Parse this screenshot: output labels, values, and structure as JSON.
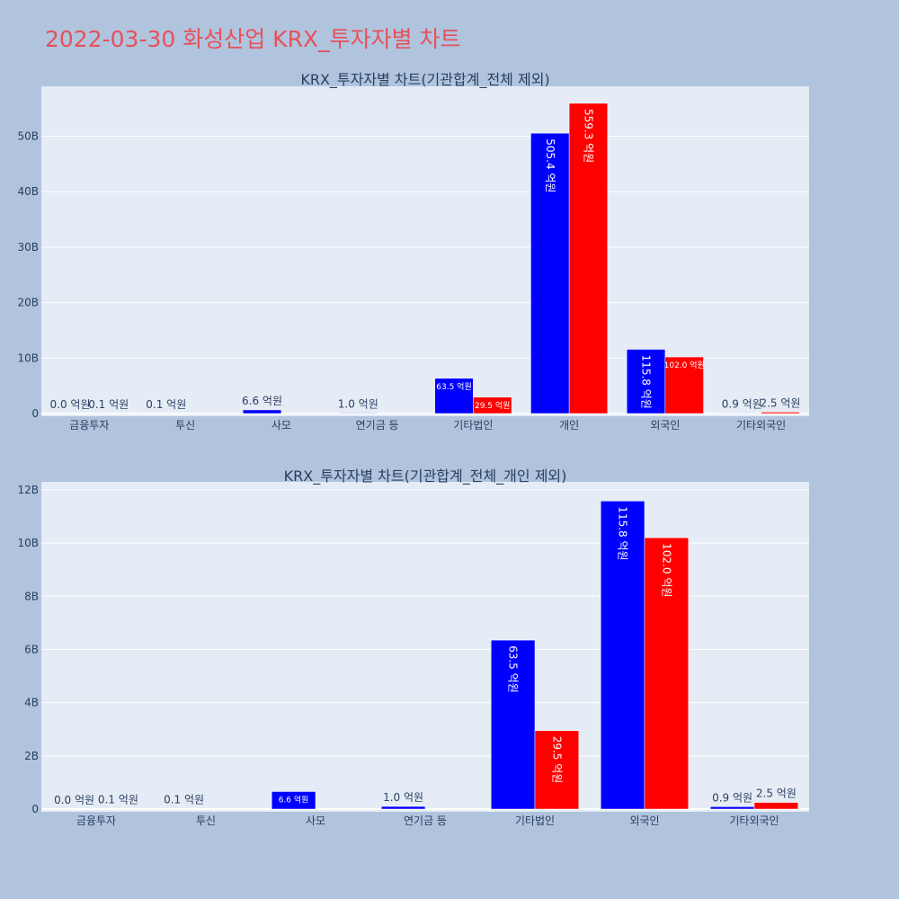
{
  "page_title": "2022-03-30 화성산업 KRX_투자자별 차트",
  "colors": {
    "background": "#b0c4de",
    "plot_bg": "#e5ecf6",
    "title": "#e8505b",
    "buy": "#0000ff",
    "sell": "#ff0000"
  },
  "chart_data": [
    {
      "type": "bar",
      "title": "KRX_투자자별 차트(기관합계_전체 제외)",
      "categories": [
        "금융투자",
        "투신",
        "사모",
        "연기금 등",
        "기타법인",
        "개인",
        "외국인",
        "기타외국인"
      ],
      "series": [
        {
          "color": "#0000ff",
          "values": [
            0.0,
            0.01,
            0.66,
            0.1,
            6.35,
            50.54,
            11.58,
            0.09
          ],
          "labels": [
            "0.0 억원",
            "0.1 억원",
            "6.6 억원",
            "1.0 억원",
            "63.5 억원",
            "505.4 억원",
            "115.8 억원",
            "0.9 억원"
          ]
        },
        {
          "color": "#ff0000",
          "values": [
            0.01,
            0.0,
            0.0,
            0.0,
            2.95,
            55.93,
            10.2,
            0.25
          ],
          "labels": [
            "0.1 억원",
            "",
            "",
            "",
            "29.5 억원",
            "559.3 억원",
            "102.0 억원",
            "2.5 억원"
          ]
        }
      ],
      "yticks": [
        0,
        10,
        20,
        30,
        40,
        50
      ],
      "ytick_labels": [
        "0",
        "10B",
        "20B",
        "30B",
        "40B",
        "50B"
      ],
      "ylim": [
        0,
        59
      ],
      "grid": true
    },
    {
      "type": "bar",
      "title": "KRX_투자자별 차트(기관합계_전체_개인 제외)",
      "categories": [
        "금융투자",
        "투신",
        "사모",
        "연기금 등",
        "기타법인",
        "외국인",
        "기타외국인"
      ],
      "series": [
        {
          "color": "#0000ff",
          "values": [
            0.0,
            0.01,
            0.66,
            0.1,
            6.35,
            11.58,
            0.09
          ],
          "labels": [
            "0.0 억원",
            "0.1 억원",
            "6.6 억원",
            "1.0 억원",
            "63.5 억원",
            "115.8 억원",
            "0.9 억원"
          ]
        },
        {
          "color": "#ff0000",
          "values": [
            0.01,
            0.0,
            0.0,
            0.0,
            2.95,
            10.2,
            0.25
          ],
          "labels": [
            "0.1 억원",
            "",
            "",
            "",
            "29.5 억원",
            "102.0 억원",
            "2.5 억원"
          ]
        }
      ],
      "yticks": [
        0,
        2,
        4,
        6,
        8,
        10,
        12
      ],
      "ytick_labels": [
        "0",
        "2B",
        "4B",
        "6B",
        "8B",
        "10B",
        "12B"
      ],
      "ylim": [
        0,
        12.3
      ],
      "grid": true
    }
  ]
}
